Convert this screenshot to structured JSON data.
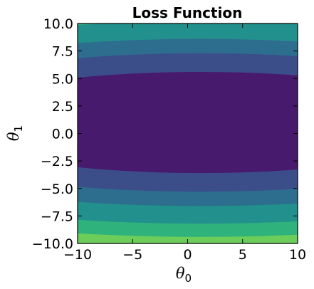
{
  "chart_data": {
    "type": "contour",
    "title": "Loss Function",
    "xlabel": "θ",
    "xlabel_sub": "0",
    "ylabel": "θ",
    "ylabel_sub": "1",
    "xlim": [
      -10,
      10
    ],
    "ylim": [
      -10,
      10
    ],
    "xticks": [
      -10,
      -5,
      0,
      5,
      10
    ],
    "xtick_labels": [
      "−10",
      "−5",
      "0",
      "5",
      "10"
    ],
    "yticks": [
      10,
      7.5,
      5,
      2.5,
      0,
      -2.5,
      -5,
      -7.5,
      -10
    ],
    "ytick_labels": [
      "10.0",
      "7.5",
      "5.0",
      "2.5",
      "0.0",
      "−2.5",
      "−5.0",
      "−7.5",
      "−10.0"
    ],
    "grid": false,
    "colormap": "viridis",
    "contour_center": [
      1.2,
      1.0
    ],
    "contour_levels": [
      {
        "semi_x": 24.0,
        "semi_y": 4.6,
        "color": "#471a6e"
      },
      {
        "semi_x": 30.0,
        "semi_y": 6.3,
        "color": "#3b4e8a"
      },
      {
        "semi_x": 36.0,
        "semi_y": 7.6,
        "color": "#2d6e8e"
      },
      {
        "semi_x": 41.0,
        "semi_y": 9.2,
        "color": "#22908c"
      },
      {
        "semi_x": 46.0,
        "semi_y": 10.4,
        "color": "#2fb27c"
      },
      {
        "semi_x": 50.0,
        "semi_y": 11.3,
        "color": "#6ccd5a"
      }
    ],
    "outer_color": "#6ccd5a"
  }
}
